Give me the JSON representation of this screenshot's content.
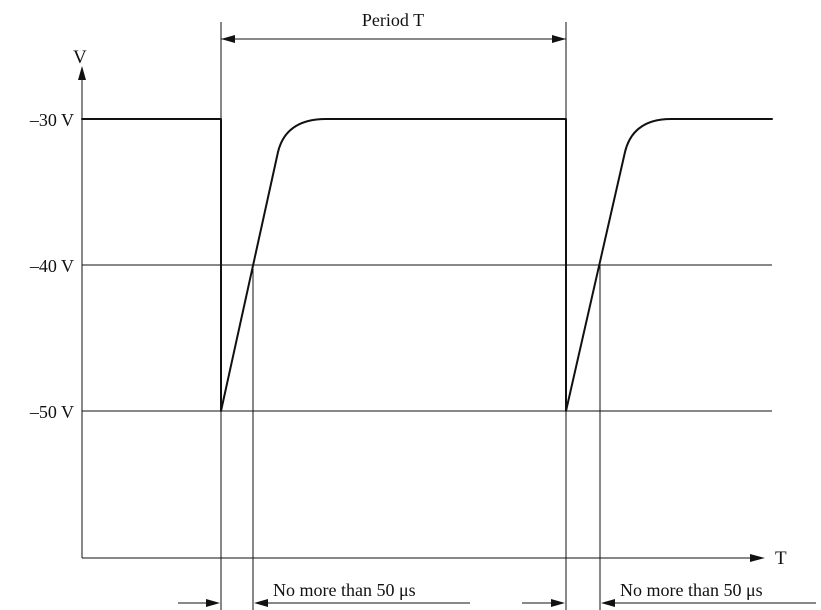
{
  "axes": {
    "y_label": "V",
    "x_label": "T"
  },
  "levels": [
    {
      "id": "minus30",
      "label": "–30 V"
    },
    {
      "id": "minus40",
      "label": "–40 V"
    },
    {
      "id": "minus50",
      "label": "–50 V"
    }
  ],
  "annotations": {
    "period": "Period T",
    "rise_limit_1": "No more than 50 μs",
    "rise_limit_2": "No more than 50 μs"
  },
  "colors": {
    "ink": "#111111",
    "background": "#ffffff"
  }
}
